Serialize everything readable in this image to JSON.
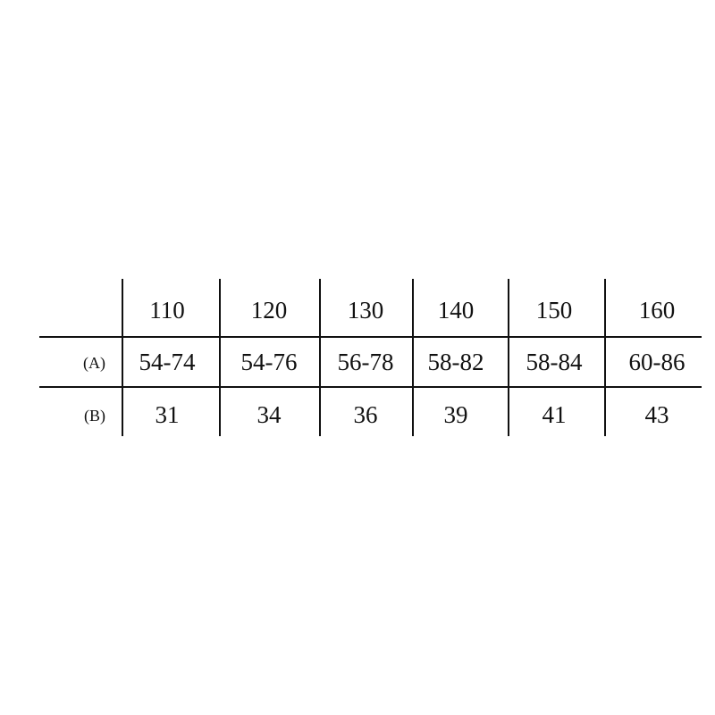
{
  "table": {
    "headers": [
      "110",
      "120",
      "130",
      "140",
      "150",
      "160"
    ],
    "rows": [
      {
        "label": "(A)",
        "cells": [
          "54-74",
          "54-76",
          "56-78",
          "58-82",
          "58-84",
          "60-86"
        ]
      },
      {
        "label": "(B)",
        "cells": [
          "31",
          "34",
          "36",
          "39",
          "41",
          "43"
        ]
      }
    ]
  }
}
